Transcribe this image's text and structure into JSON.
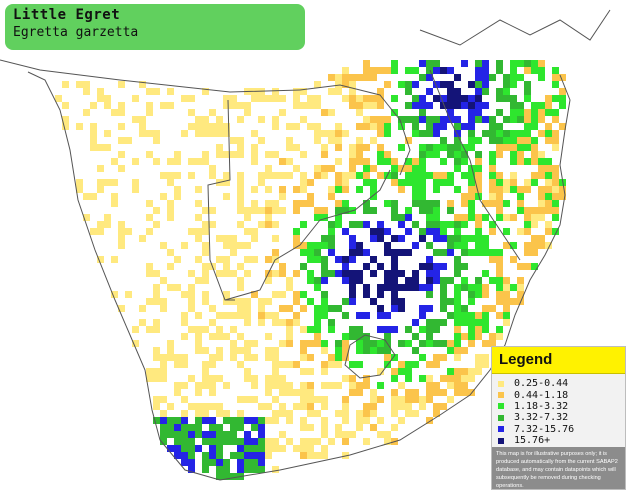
{
  "title": {
    "common_name": "Little Egret",
    "scientific_name": "Egretta garzetta"
  },
  "legend": {
    "heading": "Legend",
    "items": [
      {
        "label": "0.25-0.44",
        "color": "#ffe97f"
      },
      {
        "label": "0.44-1.18",
        "color": "#fbc44b"
      },
      {
        "label": "1.18-3.32",
        "color": "#2ee62e"
      },
      {
        "label": "3.32-7.32",
        "color": "#32b832"
      },
      {
        "label": "7.32-15.76",
        "color": "#2424e6"
      },
      {
        "label": "15.76+",
        "color": "#141478"
      }
    ],
    "disclaimer": "This map is for illustrative purposes only; it is produced automatically from the current SABAP2 database, and may contain datapoints which will subsequently be removed during checking operations."
  },
  "map_colors": {
    "ocean": "#ffffff",
    "land": "#ffffff",
    "borders": "#555555",
    "band_colors": [
      "#ffe97f",
      "#fbc44b",
      "#2ee62e",
      "#32b832",
      "#2424e6",
      "#141478"
    ]
  }
}
